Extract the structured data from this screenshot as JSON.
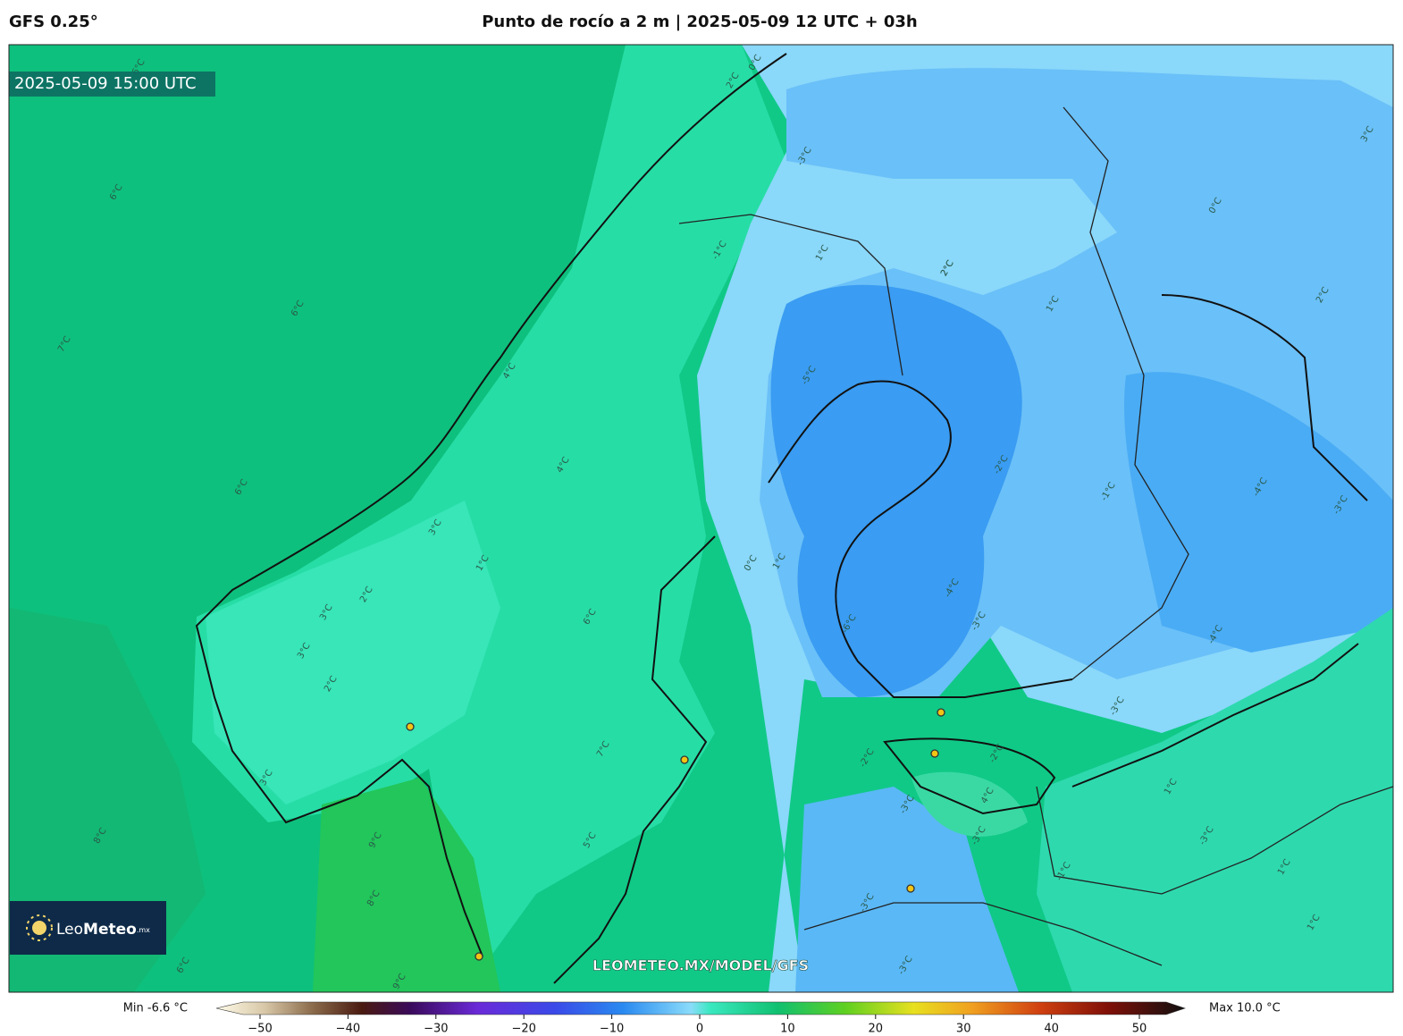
{
  "header": {
    "model": "GFS 0.25°",
    "title": "Punto de rocío a 2 m | 2025-05-09 12 UTC + 03h"
  },
  "map": {
    "valid_time": "2025-05-09 15:00 UTC",
    "watermark": "LEOMETEO.MX/MODEL/GFS",
    "logo": {
      "name_regular": "Leo",
      "name_bold": "Meteo",
      "suffix": ".mx"
    },
    "contour_labels": [
      "6°C",
      "6°C",
      "7°C",
      "6°C",
      "6°C",
      "8°C",
      "6°C",
      "2°C",
      "0°C",
      "-1°C",
      "1°C",
      "2°C",
      "4°C",
      "4°C",
      "3°C",
      "1°C",
      "2°C",
      "3°C",
      "2°C",
      "3°C",
      "6°C",
      "7°C",
      "9°C",
      "8°C",
      "9°C",
      "5°C",
      "3°C",
      "0°C",
      "1°C",
      "-3°C",
      "-5°C",
      "-6°C",
      "-4°C",
      "-2°C",
      "-3°C",
      "-1°C",
      "2°C",
      "-2°C",
      "1°C",
      "-4°C",
      "-4°C",
      "-3°C",
      "4°C",
      "-2°C",
      "-3°C",
      "-3°C",
      "-3°C",
      "-3°C",
      "1°C",
      "1°C",
      "-1°C",
      "0°C",
      "-3°C",
      "1°C",
      "-3°C",
      "2°C",
      "3°C"
    ]
  },
  "colorbar": {
    "min_label": "Min -6.6 °C",
    "max_label": "Max 10.0 °C",
    "ticks": [
      "−50",
      "−40",
      "−30",
      "−20",
      "−10",
      "0",
      "10",
      "20",
      "30",
      "40",
      "50"
    ]
  }
}
